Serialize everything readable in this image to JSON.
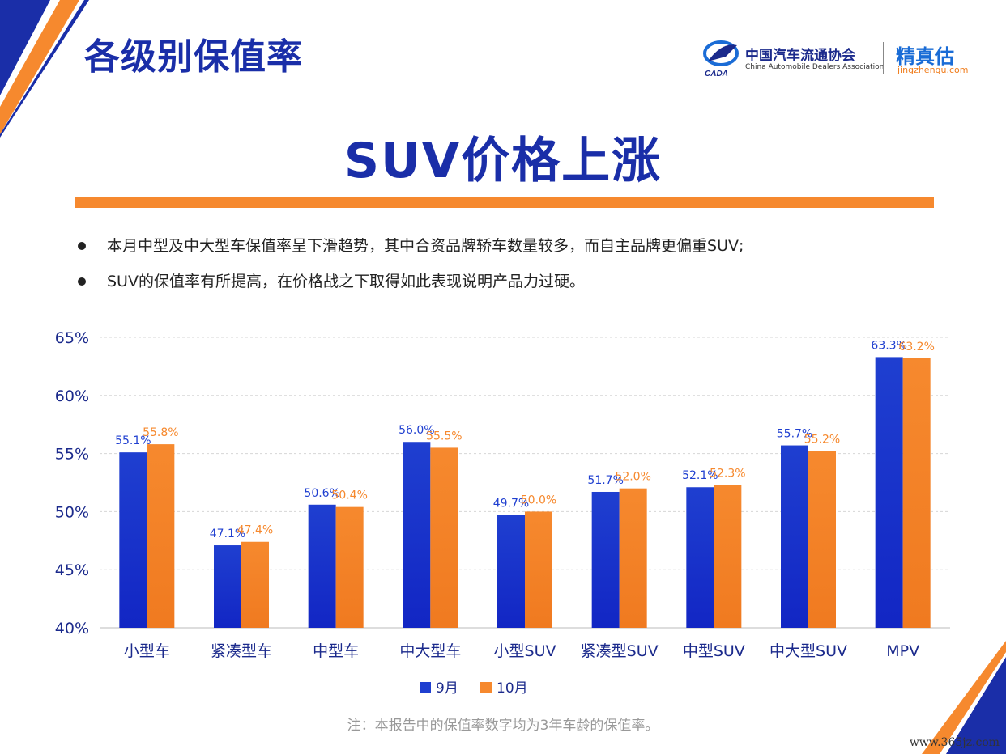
{
  "slide_title": "各级别保值率",
  "logo": {
    "association_cn": "中国汽车流通协会",
    "association_en": "China Automobile Dealers Association",
    "association_mark": "CADA",
    "brand_cn": "精真估",
    "brand_url": "jingzhengu.com"
  },
  "headline": "SUV价格上涨",
  "bullets": [
    "本月中型及中大型车保值率呈下滑趋势，其中合资品牌轿车数量较多，而自主品牌更偏重SUV;",
    "SUV的保值率有所提高，在价格战之下取得如此表现说明产品力过硬。"
  ],
  "chart_data": {
    "type": "bar",
    "categories": [
      "小型车",
      "紧凑型车",
      "中型车",
      "中大型车",
      "小型SUV",
      "紧凑型SUV",
      "中型SUV",
      "中大型SUV",
      "MPV"
    ],
    "series": [
      {
        "name": "9月",
        "values": [
          55.1,
          47.1,
          50.6,
          56.0,
          49.7,
          51.7,
          52.1,
          55.7,
          63.3
        ],
        "color": "#1f3fd0"
      },
      {
        "name": "10月",
        "values": [
          55.8,
          47.4,
          50.4,
          55.5,
          50.0,
          52.0,
          52.3,
          55.2,
          63.2
        ],
        "color": "#f6892e"
      }
    ],
    "data_labels": [
      [
        "55.1%",
        "47.1%",
        "50.6%",
        "56.0%",
        "49.7%",
        "51.7%",
        "52.1%",
        "55.7%",
        "63.3%"
      ],
      [
        "55.8%",
        "47.4%",
        "50.4%",
        "55.5%",
        "50.0%",
        "52.0%",
        "52.3%",
        "55.2%",
        "63.2%"
      ]
    ],
    "yticks": [
      40,
      45,
      50,
      55,
      60,
      65
    ],
    "ytick_labels": [
      "40%",
      "45%",
      "50%",
      "55%",
      "60%",
      "65%"
    ],
    "ylim": [
      40,
      65
    ],
    "grid": true,
    "legend_position": "bottom-center"
  },
  "footnote": "注：本报告中的保值率数字均为3年车龄的保值率。",
  "watermark_url": "www.365jz.com",
  "colors": {
    "title_blue": "#1a2ea8",
    "accent_orange": "#f6892e",
    "bar_blue": "#1f3fd0"
  }
}
